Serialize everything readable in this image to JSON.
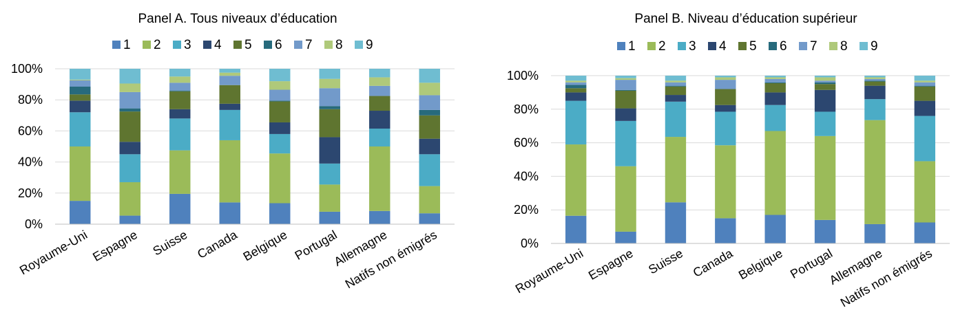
{
  "colors": {
    "1": "#4f81bd",
    "2": "#9bbb59",
    "3": "#4bacc6",
    "4": "#2c4770",
    "5": "#5f7530",
    "6": "#276a7c",
    "7": "#729aca",
    "8": "#afc97a",
    "9": "#6fbdd1",
    "grid": "#d9d9d9",
    "axis": "#bfbfbf"
  },
  "legend_labels": [
    "1",
    "2",
    "3",
    "4",
    "5",
    "6",
    "7",
    "8",
    "9"
  ],
  "chart_data": [
    {
      "type": "bar",
      "stacked": true,
      "title": "Panel A. Tous niveaux d’éducation",
      "xlabel": "",
      "ylabel": "",
      "ylim": [
        0,
        100
      ],
      "yticks": [
        "0%",
        "20%",
        "40%",
        "60%",
        "80%",
        "100%"
      ],
      "categories": [
        "Royaume-Uni",
        "Espagne",
        "Suisse",
        "Canada",
        "Belgique",
        "Portugal",
        "Allemagne",
        "Natifs non émigrés"
      ],
      "grid": true,
      "legend_position": "top",
      "series": [
        {
          "name": "1",
          "values": [
            15,
            5.5,
            19.5,
            14,
            13.5,
            8,
            8.5,
            7
          ]
        },
        {
          "name": "2",
          "values": [
            35,
            21.5,
            28,
            40,
            32,
            17.5,
            41.5,
            17.5
          ]
        },
        {
          "name": "3",
          "values": [
            22,
            18,
            20.5,
            19.5,
            12.5,
            13.5,
            11.5,
            20.5
          ]
        },
        {
          "name": "4",
          "values": [
            7.5,
            8,
            6,
            4,
            7.5,
            17,
            11.5,
            10
          ]
        },
        {
          "name": "5",
          "values": [
            4,
            19.5,
            11.5,
            12,
            13.5,
            18,
            9.5,
            15
          ]
        },
        {
          "name": "6",
          "values": [
            5,
            2,
            0.5,
            0,
            0.5,
            2,
            0,
            3.5
          ]
        },
        {
          "name": "7",
          "values": [
            4,
            10.5,
            5,
            6,
            7,
            11.5,
            6.5,
            9.5
          ]
        },
        {
          "name": "8",
          "values": [
            0.5,
            5.5,
            4,
            2,
            5.5,
            6,
            5.5,
            8
          ]
        },
        {
          "name": "9",
          "values": [
            7,
            9.5,
            5,
            2.5,
            8,
            6.5,
            5.5,
            9
          ]
        }
      ]
    },
    {
      "type": "bar",
      "stacked": true,
      "title": "Panel B. Niveau d’éducation supérieur",
      "xlabel": "",
      "ylabel": "",
      "ylim": [
        0,
        100
      ],
      "yticks": [
        "0%",
        "20%",
        "40%",
        "60%",
        "80%",
        "100%"
      ],
      "categories": [
        "Royaume-Uni",
        "Espagne",
        "Suisse",
        "Canada",
        "Belgique",
        "Portugal",
        "Allemagne",
        "Natifs non émigrés"
      ],
      "grid": true,
      "legend_position": "top",
      "series": [
        {
          "name": "1",
          "values": [
            16.5,
            7,
            24.5,
            15,
            17,
            14,
            11.5,
            12.5
          ]
        },
        {
          "name": "2",
          "values": [
            42.5,
            39,
            39,
            43.5,
            50,
            50,
            62,
            36.5
          ]
        },
        {
          "name": "3",
          "values": [
            26,
            27,
            21,
            20,
            15.5,
            14.5,
            12.5,
            27
          ]
        },
        {
          "name": "4",
          "values": [
            5,
            7.5,
            4,
            4,
            7.5,
            13,
            8,
            9
          ]
        },
        {
          "name": "5",
          "values": [
            2.5,
            10.5,
            5,
            9.5,
            5.5,
            3.5,
            2.5,
            8.5
          ]
        },
        {
          "name": "6",
          "values": [
            2,
            0.5,
            0.5,
            0,
            0.5,
            1,
            0.5,
            0.5
          ]
        },
        {
          "name": "7",
          "values": [
            1.5,
            6,
            2,
            5.5,
            2,
            1,
            1,
            2
          ]
        },
        {
          "name": "8",
          "values": [
            1,
            1,
            1,
            1.5,
            1,
            2,
            1,
            1
          ]
        },
        {
          "name": "9",
          "values": [
            3,
            1.5,
            3,
            1,
            1,
            1,
            1,
            3
          ]
        }
      ]
    }
  ]
}
